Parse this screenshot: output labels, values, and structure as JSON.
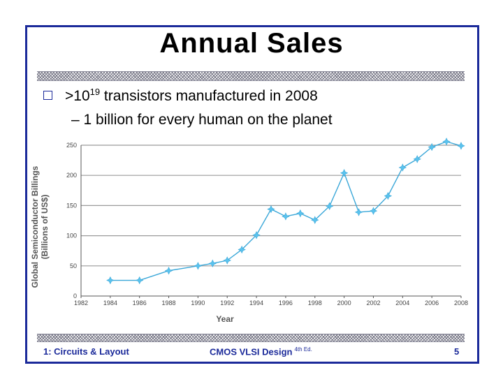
{
  "slide": {
    "title": "Annual Sales",
    "bullet_prefix": ">10",
    "bullet_exponent": "19",
    "bullet_suffix": " transistors manufactured in 2008",
    "sub_bullet": "– 1 billion for every human on the planet"
  },
  "footer": {
    "left": "1: Circuits & Layout",
    "middle": "CMOS VLSI Design",
    "middle_sup": "4th Ed.",
    "page": "5"
  },
  "colors": {
    "frame": "#1b2a9a",
    "series": "#3aa7d8",
    "marker": "#5bc3ee",
    "grid": "#9a9a9a"
  },
  "chart_data": {
    "type": "line",
    "xlabel": "Year",
    "ylabel_line1": "Global Semiconductor Billings",
    "ylabel_line2": "(Billions of US$)",
    "xlim": [
      1982,
      2008
    ],
    "ylim": [
      0,
      250
    ],
    "x_ticks": [
      1982,
      1984,
      1986,
      1988,
      1990,
      1992,
      1994,
      1996,
      1998,
      2000,
      2002,
      2004,
      2006,
      2008
    ],
    "y_ticks": [
      0,
      50,
      100,
      150,
      200,
      250
    ],
    "grid": true,
    "series": [
      {
        "x": [
          1984,
          1986,
          1988,
          1990,
          1991,
          1992,
          1993,
          1994,
          1995,
          1996,
          1997,
          1998,
          1999,
          2000,
          2001,
          2002,
          2003,
          2004,
          2005,
          2006,
          2007,
          2008
        ],
        "y": [
          26,
          26,
          42,
          50,
          54,
          59,
          77,
          101,
          144,
          132,
          137,
          126,
          149,
          204,
          139,
          141,
          166,
          213,
          227,
          247,
          256,
          249
        ]
      }
    ]
  }
}
